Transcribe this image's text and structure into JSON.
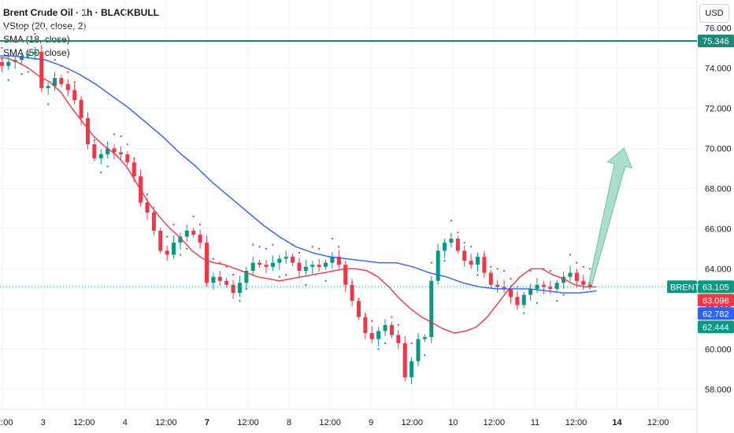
{
  "header": {
    "title": "Brent Crude Oil · 1h · BLACKBULL",
    "indicators": [
      "VStop (20, close, 2)",
      "SMA (18, close)",
      "SMA (50, close)"
    ],
    "currency_button": "USD"
  },
  "colors": {
    "up": "#089981",
    "down": "#f23645",
    "sma18": "#f23645",
    "sma50": "#2962ff",
    "vstop_bull": "#089981",
    "vstop_bear": "#f23645",
    "resistance": "#1b8a7a",
    "arrow": "#8fd3bf",
    "grid": "#f0f3fa",
    "price_line": "#089981"
  },
  "chart_data": {
    "type": "candlestick",
    "symbol": "BRENT",
    "y_axis": {
      "ticks": [
        "58.000",
        "60.000",
        "62.000",
        "64.000",
        "66.000",
        "68.000",
        "70.000",
        "72.000",
        "74.000",
        "76.000"
      ],
      "range": [
        57.0,
        76.6
      ]
    },
    "x_axis": {
      "ticks": [
        {
          "label": "12:00",
          "t": 1,
          "bold": false
        },
        {
          "label": "3",
          "t": 7,
          "bold": false
        },
        {
          "label": "12:00",
          "t": 13,
          "bold": false
        },
        {
          "label": "4",
          "t": 19,
          "bold": false
        },
        {
          "label": "12:00",
          "t": 25,
          "bold": false
        },
        {
          "label": "7",
          "t": 31,
          "bold": true
        },
        {
          "label": "12:00",
          "t": 37,
          "bold": false
        },
        {
          "label": "8",
          "t": 43,
          "bold": false
        },
        {
          "label": "12:00",
          "t": 49,
          "bold": false
        },
        {
          "label": "9",
          "t": 55,
          "bold": false
        },
        {
          "label": "12:00",
          "t": 61,
          "bold": false
        },
        {
          "label": "10",
          "t": 67,
          "bold": false
        },
        {
          "label": "12:00",
          "t": 73,
          "bold": false
        },
        {
          "label": "11",
          "t": 79,
          "bold": false
        },
        {
          "label": "12:00",
          "t": 85,
          "bold": false
        },
        {
          "label": "14",
          "t": 91,
          "bold": true
        },
        {
          "label": "12:00",
          "t": 97,
          "bold": false
        }
      ],
      "range": [
        0,
        102
      ]
    },
    "series_close": [
      74.3,
      74.1,
      74.3,
      74.4,
      74.6,
      74.7,
      74.8,
      73.0,
      73.1,
      73.5,
      73.2,
      72.9,
      72.4,
      71.5,
      70.2,
      69.5,
      69.7,
      70.0,
      69.8,
      69.7,
      69.3,
      68.6,
      67.3,
      66.8,
      65.9,
      64.9,
      64.7,
      65.3,
      65.6,
      65.9,
      65.7,
      65.3,
      63.3,
      63.6,
      63.4,
      63.2,
      62.8,
      63.3,
      63.9,
      64.3,
      64.2,
      64.1,
      64.3,
      64.5,
      64.6,
      64.3,
      63.9,
      64.1,
      64.2,
      64.1,
      64.3,
      64.6,
      64.2,
      63.2,
      62.4,
      61.6,
      60.8,
      60.5,
      60.9,
      61.2,
      60.7,
      60.3,
      58.6,
      59.4,
      60.5,
      60.6,
      63.4,
      64.9,
      65.3,
      65.5,
      64.9,
      64.4,
      64.2,
      64.6,
      63.8,
      63.2,
      63.1,
      63.0,
      62.6,
      62.2,
      62.7,
      63.0,
      63.2,
      63.1,
      63.0,
      63.3,
      63.6,
      63.8,
      63.4,
      63.2,
      63.1
    ],
    "sma18_approx": [
      74.5,
      74.5,
      74.3,
      74.0,
      73.6,
      73.3,
      72.8,
      72.0,
      71.3,
      70.6,
      70.1,
      69.7,
      69.1,
      68.2,
      67.3,
      66.6,
      66.0,
      65.5,
      64.9,
      64.5,
      64.3,
      64.2,
      64.0,
      63.8,
      63.6,
      63.5,
      63.4,
      63.5,
      63.6,
      63.7,
      63.8,
      63.9,
      64.0,
      64.0,
      63.9,
      63.6,
      63.1,
      62.5,
      62.0,
      61.6,
      61.3,
      61.0,
      60.8,
      60.9,
      61.1,
      61.6,
      62.3,
      63.0,
      63.6,
      64.0,
      64.0,
      63.7,
      63.5,
      63.2,
      63.1,
      63.1
    ],
    "sma50_approx": [
      74.6,
      74.6,
      74.5,
      74.4,
      74.1,
      73.7,
      73.2,
      72.6,
      72.0,
      71.3,
      70.6,
      69.8,
      69.1,
      68.3,
      67.6,
      66.9,
      66.2,
      65.6,
      65.1,
      64.8,
      64.6,
      64.5,
      64.4,
      64.3,
      64.3,
      64.1,
      63.8,
      63.6,
      63.3,
      63.1,
      63.0,
      63.0,
      63.0,
      62.9,
      62.8,
      62.8,
      62.9
    ],
    "resistance_level": 75.346,
    "last_close": 63.105,
    "price_labels": [
      {
        "value": "75.346",
        "kind": "resistance"
      },
      {
        "value": "63.105",
        "kind": "last",
        "tag": "BRENT"
      },
      {
        "value": "63.096",
        "kind": "sma18"
      },
      {
        "value": "62.782",
        "kind": "sma50"
      },
      {
        "value": "62.444",
        "kind": "vstop"
      }
    ],
    "projection_arrow": {
      "from": [
        87,
        63.1
      ],
      "to": [
        92,
        70.0
      ]
    }
  }
}
